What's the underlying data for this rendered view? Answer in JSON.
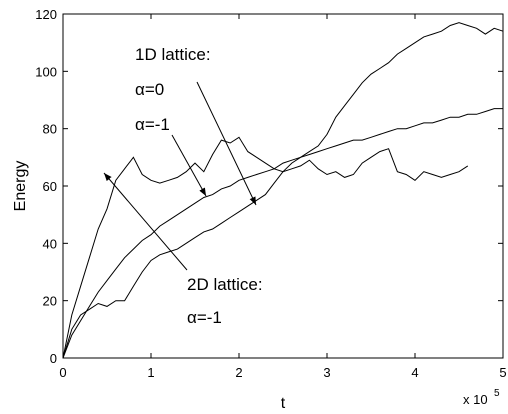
{
  "chart_data": {
    "type": "line",
    "x_label": "t",
    "y_label": "Energy",
    "x_multiplier": "x 10",
    "x_multiplier_exp": "5",
    "annotations": [
      "1D lattice:",
      "α=0",
      "α=-1",
      "2D lattice:",
      "α=-1"
    ],
    "x": [
      0,
      0.1,
      0.2,
      0.3,
      0.4,
      0.5,
      0.6,
      0.7,
      0.8,
      0.9,
      1.0,
      1.1,
      1.2,
      1.3,
      1.4,
      1.5,
      1.6,
      1.7,
      1.8,
      1.9,
      2.0,
      2.1,
      2.2,
      2.3,
      2.4,
      2.5,
      2.6,
      2.7,
      2.8,
      2.9,
      3.0,
      3.1,
      3.2,
      3.3,
      3.4,
      3.5,
      3.6,
      3.7,
      3.8,
      3.9,
      4.0,
      4.1,
      4.2,
      4.3,
      4.4,
      4.5,
      4.6,
      4.7,
      4.8,
      4.9,
      5.0
    ],
    "series": [
      {
        "color": "#000000",
        "values": [
          0,
          15,
          25,
          35,
          45,
          52,
          62,
          66,
          70,
          64,
          62,
          61,
          62,
          63,
          65,
          68,
          65,
          71,
          76,
          75,
          77,
          72,
          70,
          68,
          66,
          65,
          66,
          67,
          69,
          66,
          64,
          65,
          63,
          64,
          68,
          70,
          72,
          73,
          65,
          64,
          62,
          65,
          64,
          63,
          64,
          65,
          67,
          null,
          null,
          null,
          null
        ]
      },
      {
        "color": "#000000",
        "values": [
          0,
          8,
          13,
          18,
          23,
          27,
          31,
          35,
          38,
          41,
          43,
          46,
          48,
          50,
          52,
          54,
          56,
          57,
          59,
          60,
          62,
          63,
          64,
          65,
          66,
          68,
          69,
          70,
          71,
          72,
          73,
          74,
          75,
          76,
          76,
          77,
          78,
          79,
          80,
          80,
          81,
          82,
          82,
          83,
          84,
          84,
          85,
          85,
          86,
          87,
          87
        ]
      },
      {
        "color": "#000000",
        "values": [
          0,
          10,
          15,
          17,
          19,
          18,
          20,
          20,
          25,
          30,
          34,
          36,
          37,
          38,
          40,
          42,
          44,
          45,
          47,
          49,
          51,
          53,
          55,
          57,
          61,
          65,
          68,
          70,
          72,
          74,
          78,
          84,
          88,
          92,
          96,
          99,
          101,
          103,
          106,
          108,
          110,
          112,
          113,
          114,
          116,
          117,
          116,
          115,
          113,
          115,
          114
        ]
      }
    ],
    "xlim": [
      0,
      5
    ],
    "xticks": [
      0,
      1,
      2,
      3,
      4,
      5
    ],
    "ylim": [
      0,
      120
    ],
    "yticks": [
      0,
      20,
      40,
      60,
      80,
      100,
      120
    ]
  }
}
